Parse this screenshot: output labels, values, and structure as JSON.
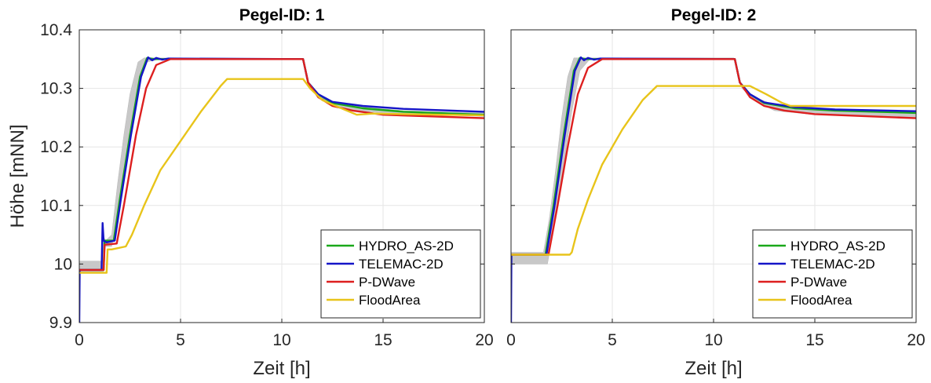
{
  "chart_data": [
    {
      "type": "line",
      "title": "Pegel-ID: 1",
      "xlabel": "Zeit [h]",
      "ylabel": "Höhe [mNN]",
      "xlim": [
        0,
        20
      ],
      "ylim": [
        9.9,
        10.4
      ],
      "xticks": [
        0,
        5,
        10,
        15,
        20
      ],
      "yticks": [
        9.9,
        10.0,
        10.1,
        10.2,
        10.3,
        10.4
      ],
      "ytick_labels": [
        "9.9",
        "10",
        "10.1",
        "10.2",
        "10.3",
        "10.4"
      ],
      "grid": true,
      "legend_position": "bottom-right",
      "band": {
        "color": "#c8c8c8",
        "upper": [
          [
            0,
            10.005
          ],
          [
            1.15,
            10.005
          ],
          [
            1.15,
            10.05
          ],
          [
            1.3,
            10.04
          ],
          [
            1.6,
            10.05
          ],
          [
            1.9,
            10.14
          ],
          [
            2.2,
            10.22
          ],
          [
            2.5,
            10.29
          ],
          [
            2.9,
            10.345
          ],
          [
            3.2,
            10.352
          ],
          [
            11,
            10.351
          ],
          [
            11.3,
            10.31
          ],
          [
            11.8,
            10.29
          ],
          [
            12.5,
            10.275
          ],
          [
            14,
            10.268
          ],
          [
            16,
            10.262
          ],
          [
            20,
            10.258
          ]
        ],
        "lower": [
          [
            0,
            9.985
          ],
          [
            1.2,
            9.985
          ],
          [
            1.2,
            10.03
          ],
          [
            1.6,
            10.03
          ],
          [
            1.9,
            10.08
          ],
          [
            2.3,
            10.17
          ],
          [
            2.7,
            10.26
          ],
          [
            3.0,
            10.31
          ],
          [
            3.3,
            10.345
          ],
          [
            4.0,
            10.35
          ],
          [
            11,
            10.35
          ],
          [
            11.4,
            10.3
          ],
          [
            12,
            10.28
          ],
          [
            13,
            10.265
          ],
          [
            15,
            10.258
          ],
          [
            20,
            10.252
          ]
        ]
      },
      "series": [
        {
          "name": "HYDRO_AS-2D",
          "color": "#1aa81a",
          "points": [
            [
              0,
              9.99
            ],
            [
              1.2,
              9.99
            ],
            [
              1.25,
              10.04
            ],
            [
              1.7,
              10.04
            ],
            [
              2.0,
              10.11
            ],
            [
              2.5,
              10.22
            ],
            [
              3.0,
              10.32
            ],
            [
              3.35,
              10.352
            ],
            [
              3.7,
              10.35
            ],
            [
              11.05,
              10.35
            ],
            [
              11.3,
              10.31
            ],
            [
              11.8,
              10.29
            ],
            [
              12.5,
              10.275
            ],
            [
              14,
              10.266
            ],
            [
              16,
              10.26
            ],
            [
              20,
              10.255
            ]
          ]
        },
        {
          "name": "TELEMAC-2D",
          "color": "#1515c8",
          "points": [
            [
              0,
              9.9
            ],
            [
              0.02,
              9.99
            ],
            [
              1.0,
              9.99
            ],
            [
              1.1,
              9.99
            ],
            [
              1.15,
              10.07
            ],
            [
              1.2,
              10.04
            ],
            [
              1.35,
              10.037
            ],
            [
              1.75,
              10.04
            ],
            [
              2.05,
              10.11
            ],
            [
              2.55,
              10.22
            ],
            [
              3.05,
              10.32
            ],
            [
              3.4,
              10.353
            ],
            [
              3.6,
              10.348
            ],
            [
              3.8,
              10.352
            ],
            [
              4.1,
              10.349
            ],
            [
              4.4,
              10.351
            ],
            [
              11.05,
              10.35
            ],
            [
              11.3,
              10.31
            ],
            [
              11.8,
              10.29
            ],
            [
              12.5,
              10.277
            ],
            [
              14,
              10.27
            ],
            [
              16,
              10.265
            ],
            [
              20,
              10.26
            ]
          ]
        },
        {
          "name": "P-DWave",
          "color": "#dd1f1f",
          "points": [
            [
              0,
              9.99
            ],
            [
              1.2,
              9.99
            ],
            [
              1.25,
              10.033
            ],
            [
              1.85,
              10.035
            ],
            [
              2.2,
              10.1
            ],
            [
              2.8,
              10.22
            ],
            [
              3.3,
              10.3
            ],
            [
              3.8,
              10.34
            ],
            [
              4.5,
              10.35
            ],
            [
              11.05,
              10.35
            ],
            [
              11.3,
              10.31
            ],
            [
              11.8,
              10.285
            ],
            [
              12.5,
              10.27
            ],
            [
              13.5,
              10.262
            ],
            [
              15,
              10.255
            ],
            [
              20,
              10.249
            ]
          ]
        },
        {
          "name": "FloodArea",
          "color": "#e8c41a",
          "points": [
            [
              0,
              9.985
            ],
            [
              1.35,
              9.985
            ],
            [
              1.4,
              10.025
            ],
            [
              1.6,
              10.025
            ],
            [
              2.3,
              10.03
            ],
            [
              2.6,
              10.05
            ],
            [
              3.2,
              10.1
            ],
            [
              4.0,
              10.16
            ],
            [
              5.0,
              10.21
            ],
            [
              6.0,
              10.26
            ],
            [
              7.0,
              10.305
            ],
            [
              7.3,
              10.316
            ],
            [
              11.05,
              10.316
            ],
            [
              11.4,
              10.3
            ],
            [
              12,
              10.28
            ],
            [
              13,
              10.265
            ],
            [
              13.7,
              10.255
            ],
            [
              14.5,
              10.257
            ],
            [
              16,
              10.256
            ],
            [
              20,
              10.254
            ]
          ]
        }
      ]
    },
    {
      "type": "line",
      "title": "Pegel-ID: 2",
      "xlabel": "Zeit [h]",
      "ylabel": "",
      "xlim": [
        0,
        20
      ],
      "ylim": [
        9.9,
        10.4
      ],
      "xticks": [
        0,
        5,
        10,
        15,
        20
      ],
      "yticks": [
        9.9,
        10.0,
        10.1,
        10.2,
        10.3,
        10.4
      ],
      "grid": true,
      "legend_position": "bottom-right",
      "band": {
        "color": "#c8c8c8",
        "upper": [
          [
            0,
            10.02
          ],
          [
            1.6,
            10.02
          ],
          [
            1.9,
            10.08
          ],
          [
            2.2,
            10.16
          ],
          [
            2.5,
            10.25
          ],
          [
            2.8,
            10.32
          ],
          [
            3.1,
            10.352
          ],
          [
            11,
            10.352
          ],
          [
            11.3,
            10.31
          ],
          [
            12,
            10.285
          ],
          [
            13,
            10.272
          ],
          [
            15,
            10.265
          ],
          [
            20,
            10.26
          ]
        ],
        "lower": [
          [
            0,
            10.0
          ],
          [
            1.5,
            10.0
          ],
          [
            1.8,
            10.0
          ],
          [
            2.2,
            10.08
          ],
          [
            2.6,
            10.17
          ],
          [
            3.0,
            10.26
          ],
          [
            3.4,
            10.33
          ],
          [
            3.9,
            10.35
          ],
          [
            11,
            10.35
          ],
          [
            11.4,
            10.3
          ],
          [
            12,
            10.28
          ],
          [
            13,
            10.262
          ],
          [
            15,
            10.255
          ],
          [
            20,
            10.25
          ]
        ]
      },
      "series": [
        {
          "name": "HYDRO_AS-2D",
          "color": "#1aa81a",
          "points": [
            [
              0,
              10.016
            ],
            [
              1.7,
              10.016
            ],
            [
              2.1,
              10.1
            ],
            [
              2.6,
              10.22
            ],
            [
              3.1,
              10.33
            ],
            [
              3.4,
              10.352
            ],
            [
              3.7,
              10.35
            ],
            [
              11.05,
              10.35
            ],
            [
              11.3,
              10.31
            ],
            [
              11.8,
              10.29
            ],
            [
              12.5,
              10.275
            ],
            [
              14,
              10.266
            ],
            [
              16,
              10.262
            ],
            [
              20,
              10.258
            ]
          ]
        },
        {
          "name": "TELEMAC-2D",
          "color": "#1515c8",
          "points": [
            [
              0,
              9.9
            ],
            [
              0.02,
              10.016
            ],
            [
              1.75,
              10.016
            ],
            [
              2.15,
              10.1
            ],
            [
              2.65,
              10.22
            ],
            [
              3.15,
              10.33
            ],
            [
              3.45,
              10.353
            ],
            [
              3.6,
              10.348
            ],
            [
              3.8,
              10.352
            ],
            [
              4.1,
              10.349
            ],
            [
              4.4,
              10.351
            ],
            [
              11.05,
              10.35
            ],
            [
              11.3,
              10.31
            ],
            [
              11.8,
              10.29
            ],
            [
              12.5,
              10.276
            ],
            [
              14,
              10.268
            ],
            [
              16,
              10.264
            ],
            [
              20,
              10.261
            ]
          ]
        },
        {
          "name": "P-DWave",
          "color": "#dd1f1f",
          "points": [
            [
              0,
              10.016
            ],
            [
              1.85,
              10.016
            ],
            [
              2.3,
              10.1
            ],
            [
              2.8,
              10.2
            ],
            [
              3.3,
              10.29
            ],
            [
              3.8,
              10.335
            ],
            [
              4.5,
              10.35
            ],
            [
              11.05,
              10.35
            ],
            [
              11.3,
              10.31
            ],
            [
              11.8,
              10.285
            ],
            [
              12.5,
              10.27
            ],
            [
              13.5,
              10.262
            ],
            [
              15,
              10.256
            ],
            [
              20,
              10.249
            ]
          ]
        },
        {
          "name": "FloodArea",
          "color": "#e8c41a",
          "points": [
            [
              0,
              10.016
            ],
            [
              2.9,
              10.016
            ],
            [
              3.0,
              10.02
            ],
            [
              3.3,
              10.06
            ],
            [
              3.8,
              10.11
            ],
            [
              4.5,
              10.17
            ],
            [
              5.5,
              10.23
            ],
            [
              6.5,
              10.28
            ],
            [
              7.2,
              10.304
            ],
            [
              11.8,
              10.304
            ],
            [
              12.6,
              10.29
            ],
            [
              13.4,
              10.275
            ],
            [
              13.8,
              10.27
            ],
            [
              15,
              10.27
            ],
            [
              20,
              10.27
            ]
          ]
        }
      ]
    }
  ]
}
